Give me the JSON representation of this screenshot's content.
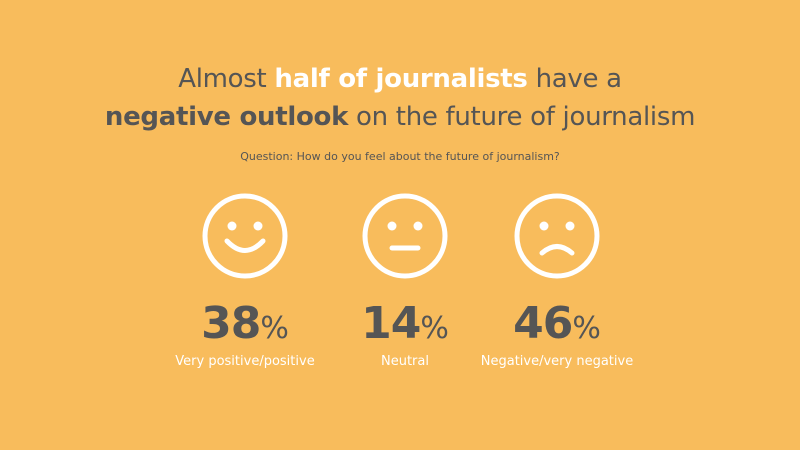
{
  "headline": {
    "line1_pre": "Almost ",
    "line1_bold": "half of journalists",
    "line1_post": " have a",
    "line2_bold": "negative outlook",
    "line2_post": " on the future of journalism"
  },
  "question": "Question: How do you feel about the future of journalism?",
  "colors": {
    "background": "#F8BC5C",
    "text_dark": "#555555",
    "text_light": "#FFFFFF"
  },
  "chart_data": {
    "type": "table",
    "categories": [
      "Very positive/positive",
      "Neutral",
      "Negative/very negative"
    ],
    "values": [
      38,
      14,
      46
    ],
    "unit": "%",
    "icons": [
      "smiling-face-icon",
      "neutral-face-icon",
      "sad-face-icon"
    ]
  },
  "items": [
    {
      "value": "38",
      "unit": "%",
      "label": "Very positive/positive"
    },
    {
      "value": "14",
      "unit": "%",
      "label": "Neutral"
    },
    {
      "value": "46",
      "unit": "%",
      "label": "Negative/very negative"
    }
  ]
}
